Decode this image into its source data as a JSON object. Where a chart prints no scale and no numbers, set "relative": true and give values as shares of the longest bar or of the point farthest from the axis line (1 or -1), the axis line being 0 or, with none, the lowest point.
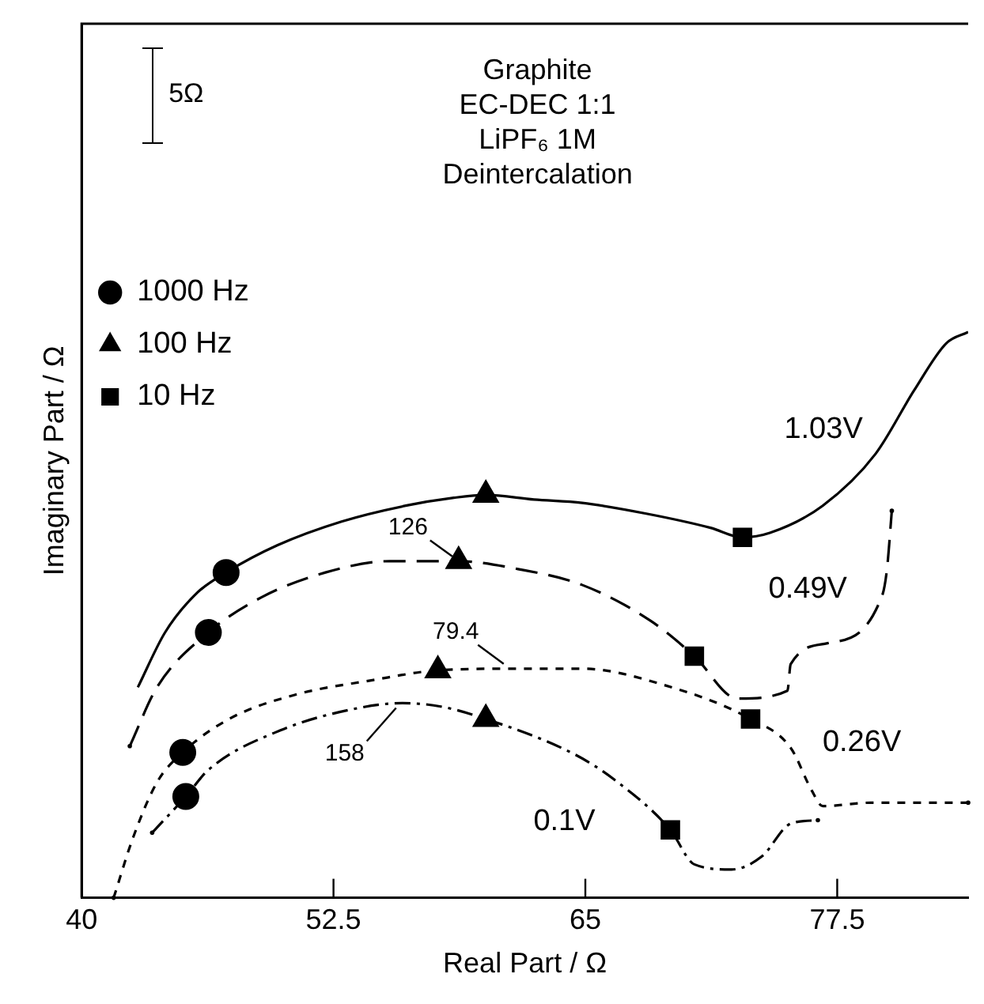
{
  "chart_data": {
    "type": "line",
    "title": "Graphite\nEC-DEC 1:1\nLiPF₆ 1M\nDeintercalation",
    "xlabel": "Real Part / Ω",
    "ylabel": "Imaginary Part / Ω",
    "relative": true,
    "xlim": [
      40,
      84
    ],
    "xticks": [
      40,
      52.5,
      65,
      77.5
    ],
    "grid": false,
    "legend": "top left",
    "annotations": [
      "5Ω",
      {
        "text": "126",
        "x": 58.71,
        "y": 0.595
      },
      {
        "text": "79.4",
        "x": 61.26,
        "y": 0.405
      },
      {
        "text": "158",
        "x": 55.92,
        "y": 0.344
      }
    ],
    "series": [
      {
        "name": "1.03V",
        "line_style": "solid",
        "marker": "none",
        "color": "#000000",
        "x": [
          42.79,
          44.14,
          45.73,
          47.17,
          49.71,
          52.9,
          56.08,
          58.47,
          60.06,
          62.45,
          64.84,
          68.03,
          71.21,
          72.8,
          74.16,
          76.78,
          79.41,
          81.32,
          82.91,
          84
        ],
        "values": [
          0.372,
          0.469,
          0.539,
          0.575,
          0.623,
          0.665,
          0.693,
          0.707,
          0.712,
          0.704,
          0.698,
          0.679,
          0.654,
          0.637,
          0.645,
          0.693,
          0.785,
          0.897,
          0.98,
          1
        ]
      },
      {
        "name": "0.49V",
        "line_style": "dashed",
        "marker": "none",
        "color": "#000000",
        "x": [
          42.39,
          43.74,
          46.29,
          48.92,
          52.1,
          55.29,
          58.71,
          61.66,
          64.84,
          68.26,
          70.41,
          72.56,
          75.03,
          75.19,
          77.02,
          79.73,
          79.97,
          80.21
        ],
        "values": [
          0.268,
          0.372,
          0.469,
          0.531,
          0.575,
          0.595,
          0.595,
          0.581,
          0.553,
          0.489,
          0.427,
          0.352,
          0.366,
          0.413,
          0.45,
          0.534,
          0.581,
          0.684
        ]
      },
      {
        "name": "0.26V",
        "line_style": "dotted",
        "marker": "none",
        "color": "#000000",
        "x": [
          41.59,
          42.55,
          43.74,
          45.02,
          47.32,
          50.51,
          54.49,
          57.68,
          61.66,
          64.84,
          68.82,
          73.2,
          75.19,
          76.23,
          76.78,
          79.17,
          84
        ],
        "values": [
          0,
          0.106,
          0.204,
          0.257,
          0.316,
          0.358,
          0.385,
          0.402,
          0.405,
          0.405,
          0.377,
          0.316,
          0.265,
          0.19,
          0.162,
          0.168,
          0.168
        ]
      },
      {
        "name": "0.1V",
        "line_style": "dashdot",
        "marker": "none",
        "color": "#000000",
        "x": [
          43.5,
          45.17,
          46.29,
          49.87,
          53.69,
          55.92,
          57.83,
          60.06,
          64.44,
          66.43,
          69.22,
          70.41,
          72.25,
          73.76,
          75.19,
          76.54
        ],
        "values": [
          0.115,
          0.179,
          0.226,
          0.296,
          0.335,
          0.344,
          0.338,
          0.316,
          0.254,
          0.209,
          0.12,
          0.059,
          0.05,
          0.073,
          0.131,
          0.137
        ]
      },
      {
        "name": "1000 Hz",
        "type": "scatter",
        "marker": "circle",
        "color": "#000000",
        "x": [
          47.17,
          46.29,
          45.02,
          45.17
        ],
        "values": [
          0.575,
          0.469,
          0.257,
          0.179
        ]
      },
      {
        "name": "100 Hz",
        "type": "scatter",
        "marker": "triangle",
        "color": "#000000",
        "x": [
          60.06,
          58.71,
          57.68,
          60.06
        ],
        "values": [
          0.712,
          0.595,
          0.402,
          0.316
        ]
      },
      {
        "name": "10 Hz",
        "type": "scatter",
        "marker": "square",
        "color": "#000000",
        "x": [
          72.8,
          70.41,
          73.2,
          69.22
        ],
        "values": [
          0.637,
          0.427,
          0.316,
          0.12
        ]
      }
    ]
  }
}
